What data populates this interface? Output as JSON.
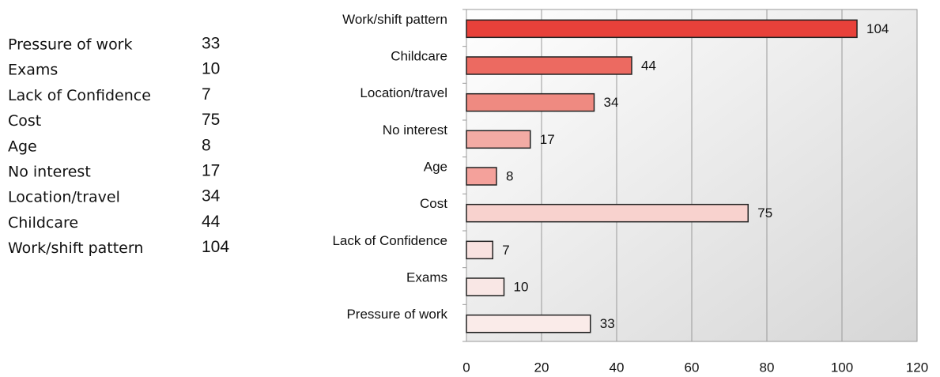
{
  "table": {
    "rows": [
      [
        "Pressure of work",
        33
      ],
      [
        "Exams",
        10
      ],
      [
        "Lack of Confidence",
        7
      ],
      [
        "Cost",
        75
      ],
      [
        "Age",
        8
      ],
      [
        "No interest",
        17
      ],
      [
        "Location/travel",
        34
      ],
      [
        "Childcare",
        44
      ],
      [
        "Work/shift pattern",
        104
      ]
    ]
  },
  "chart_data": {
    "type": "bar",
    "orientation": "horizontal",
    "categories": [
      "Work/shift pattern",
      "Childcare",
      "Location/travel",
      "No interest",
      "Age",
      "Cost",
      "Lack of Confidence",
      "Exams",
      "Pressure of work"
    ],
    "values": [
      104,
      44,
      34,
      17,
      8,
      75,
      7,
      10,
      33
    ],
    "colors": [
      "#e8413a",
      "#ec6a61",
      "#ef8a81",
      "#f3aba4",
      "#f4a19b",
      "#f8d2ce",
      "#f9e2e0",
      "#f9e7e5",
      "#faebe9"
    ],
    "xlim": [
      0,
      120
    ],
    "xticks": [
      0,
      20,
      40,
      60,
      80,
      100,
      120
    ],
    "grid": true
  }
}
